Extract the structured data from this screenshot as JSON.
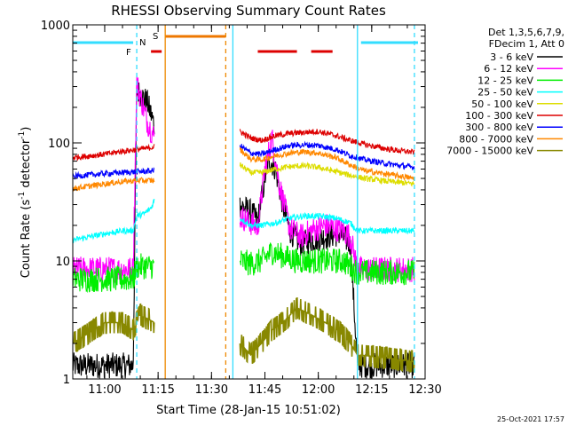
{
  "chart_data": {
    "type": "line",
    "title": "RHESSI Observing Summary Count Rates",
    "xlabel": "Start Time (28-Jan-15 10:51:02)",
    "ylabel": "Count Rate (s⁻¹ detector⁻¹)",
    "ylabel_parts": [
      "Count Rate (s",
      "-1",
      " detector",
      "-1",
      ")"
    ],
    "y_scale": "log",
    "ylim": [
      1,
      1000
    ],
    "xlim": [
      "10:51:02",
      "12:30:00"
    ],
    "x_ticks": [
      "11:00",
      "11:15",
      "11:30",
      "11:45",
      "12:00",
      "12:15",
      "12:30"
    ],
    "y_ticks": [
      "1",
      "10",
      "100",
      "1000"
    ],
    "legend_header": [
      "Det 1,3,5,6,7,9,",
      "FDecim 1, Att 0"
    ],
    "legend_position": "right",
    "footer": "25-Oct-2021 17:57",
    "flags": [
      {
        "label": "F",
        "color": "#dd0000",
        "segments": [
          [
            "11:13",
            "11:16"
          ]
        ]
      },
      {
        "label": "N",
        "color": "#22aaff",
        "segments": []
      },
      {
        "label": "S",
        "color": "#ee7700",
        "segments": [
          [
            "11:17",
            "11:34"
          ]
        ]
      },
      {
        "label": "",
        "color": "#dd0000",
        "segments": [
          [
            "11:43",
            "11:54"
          ],
          [
            "11:58",
            "12:04"
          ]
        ]
      },
      {
        "label": "",
        "color": "#33ddff",
        "segments": [
          [
            "10:51",
            "11:08"
          ],
          [
            "12:12",
            "12:28"
          ]
        ]
      }
    ],
    "vlines": [
      {
        "time": "11:09",
        "color": "#33ddff",
        "style": "dashed"
      },
      {
        "time": "11:17",
        "color": "#ee8800",
        "style": "solid"
      },
      {
        "time": "11:34",
        "color": "#ee8800",
        "style": "dashed"
      },
      {
        "time": "11:36",
        "color": "#33ddff",
        "style": "solid"
      },
      {
        "time": "12:11",
        "color": "#33ddff",
        "style": "solid"
      },
      {
        "time": "12:27",
        "color": "#33ddff",
        "style": "dashed"
      }
    ],
    "series": [
      {
        "name": "3 - 6 keV",
        "color": "#000000",
        "band": "noisy",
        "segments": [
          [
            [
              "10:51",
              1.3
            ],
            [
              "11:00",
              1.3
            ],
            [
              "11:05",
              1.3
            ],
            [
              "11:08",
              1.3
            ],
            [
              "11:09",
              280
            ],
            [
              "11:12",
              220
            ],
            [
              "11:14",
              140
            ]
          ],
          [
            [
              "11:38",
              30
            ],
            [
              "11:41",
              26
            ],
            [
              "11:43",
              22
            ],
            [
              "11:45",
              50
            ],
            [
              "11:46",
              75
            ],
            [
              "11:48",
              60
            ],
            [
              "11:50",
              30
            ],
            [
              "11:52",
              18
            ],
            [
              "11:55",
              14
            ],
            [
              "11:58",
              15
            ],
            [
              "12:02",
              16
            ],
            [
              "12:06",
              17
            ],
            [
              "12:09",
              14
            ],
            [
              "12:11",
              1.3
            ],
            [
              "12:20",
              1.3
            ],
            [
              "12:27",
              1.3
            ]
          ]
        ]
      },
      {
        "name": "6 - 12 keV",
        "color": "#ff00ff",
        "band": "noisy",
        "segments": [
          [
            [
              "10:51",
              8.5
            ],
            [
              "11:00",
              8.5
            ],
            [
              "11:08",
              8.5
            ],
            [
              "11:09",
              320
            ],
            [
              "11:12",
              150
            ],
            [
              "11:14",
              110
            ]
          ],
          [
            [
              "11:38",
              24
            ],
            [
              "11:41",
              21
            ],
            [
              "11:43",
              19
            ],
            [
              "11:45",
              60
            ],
            [
              "11:47",
              110
            ],
            [
              "11:49",
              45
            ],
            [
              "11:52",
              19
            ],
            [
              "11:55",
              16
            ],
            [
              "11:58",
              18
            ],
            [
              "12:02",
              20
            ],
            [
              "12:07",
              18
            ],
            [
              "12:09",
              16
            ],
            [
              "12:11",
              8.5
            ],
            [
              "12:20",
              8.5
            ],
            [
              "12:27",
              8.5
            ]
          ]
        ]
      },
      {
        "name": "12 - 25 keV",
        "color": "#00ee00",
        "band": "noisy",
        "segments": [
          [
            [
              "10:51",
              7
            ],
            [
              "11:00",
              7
            ],
            [
              "11:08",
              7
            ],
            [
              "11:09",
              9
            ],
            [
              "11:14",
              9
            ]
          ],
          [
            [
              "11:38",
              10
            ],
            [
              "11:41",
              9.5
            ],
            [
              "11:44",
              10
            ],
            [
              "11:47",
              12
            ],
            [
              "11:50",
              11
            ],
            [
              "11:54",
              10
            ],
            [
              "11:58",
              10
            ],
            [
              "12:02",
              10
            ],
            [
              "12:07",
              10
            ],
            [
              "12:11",
              8
            ],
            [
              "12:20",
              8
            ],
            [
              "12:27",
              8
            ]
          ]
        ]
      },
      {
        "name": "25 - 50 keV",
        "color": "#00ffff",
        "band": "smooth",
        "segments": [
          [
            [
              "10:51",
              15
            ],
            [
              "11:00",
              17
            ],
            [
              "11:05",
              18
            ],
            [
              "11:08",
              18
            ],
            [
              "11:09",
              24
            ],
            [
              "11:11",
              25
            ],
            [
              "11:13",
              28
            ],
            [
              "11:14",
              33
            ]
          ],
          [
            [
              "11:38",
              23
            ],
            [
              "11:41",
              20
            ],
            [
              "11:44",
              20
            ],
            [
              "11:48",
              21
            ],
            [
              "11:52",
              23
            ],
            [
              "11:56",
              24
            ],
            [
              "12:00",
              24
            ],
            [
              "12:05",
              23
            ],
            [
              "12:09",
              21
            ],
            [
              "12:11",
              18
            ],
            [
              "12:20",
              18
            ],
            [
              "12:27",
              18
            ]
          ]
        ]
      },
      {
        "name": "50 - 100 keV",
        "color": "#dddd00",
        "band": "smooth",
        "segments": [
          [],
          [
            [
              "11:38",
              65
            ],
            [
              "11:41",
              56
            ],
            [
              "11:44",
              56
            ],
            [
              "11:48",
              60
            ],
            [
              "11:52",
              63
            ],
            [
              "11:56",
              64
            ],
            [
              "12:00",
              62
            ],
            [
              "12:05",
              57
            ],
            [
              "12:09",
              53
            ],
            [
              "12:13",
              50
            ],
            [
              "12:20",
              47
            ],
            [
              "12:27",
              45
            ]
          ]
        ]
      },
      {
        "name": "100 - 300 keV",
        "color": "#dd0000",
        "band": "smooth",
        "segments": [
          [
            [
              "10:51",
              75
            ],
            [
              "11:00",
              80
            ],
            [
              "11:05",
              85
            ],
            [
              "11:08",
              87
            ],
            [
              "11:09",
              88
            ],
            [
              "11:12",
              90
            ],
            [
              "11:14",
              93
            ]
          ],
          [
            [
              "11:38",
              125
            ],
            [
              "11:41",
              110
            ],
            [
              "11:44",
              105
            ],
            [
              "11:48",
              115
            ],
            [
              "11:52",
              120
            ],
            [
              "11:56",
              123
            ],
            [
              "12:00",
              125
            ],
            [
              "12:05",
              115
            ],
            [
              "12:09",
              105
            ],
            [
              "12:13",
              97
            ],
            [
              "12:20",
              88
            ],
            [
              "12:27",
              83
            ]
          ]
        ]
      },
      {
        "name": "300 - 800 keV",
        "color": "#0000ff",
        "band": "smooth",
        "segments": [
          [
            [
              "10:51",
              52
            ],
            [
              "11:00",
              55
            ],
            [
              "11:05",
              56
            ],
            [
              "11:09",
              57
            ],
            [
              "11:14",
              58
            ]
          ],
          [
            [
              "11:38",
              95
            ],
            [
              "11:41",
              82
            ],
            [
              "11:44",
              80
            ],
            [
              "11:48",
              88
            ],
            [
              "11:52",
              95
            ],
            [
              "11:56",
              96
            ],
            [
              "12:00",
              95
            ],
            [
              "12:05",
              88
            ],
            [
              "12:09",
              78
            ],
            [
              "12:13",
              72
            ],
            [
              "12:20",
              66
            ],
            [
              "12:27",
              62
            ]
          ]
        ]
      },
      {
        "name": "800 - 7000 keV",
        "color": "#ff8800",
        "band": "smooth",
        "segments": [
          [
            [
              "10:51",
              41
            ],
            [
              "11:00",
              45
            ],
            [
              "11:05",
              47
            ],
            [
              "11:09",
              48
            ],
            [
              "11:14",
              48
            ]
          ],
          [
            [
              "11:38",
              88
            ],
            [
              "11:41",
              73
            ],
            [
              "11:44",
              72
            ],
            [
              "11:48",
              78
            ],
            [
              "11:52",
              82
            ],
            [
              "11:56",
              84
            ],
            [
              "12:00",
              82
            ],
            [
              "12:05",
              75
            ],
            [
              "12:09",
              65
            ],
            [
              "12:13",
              58
            ],
            [
              "12:20",
              54
            ],
            [
              "12:27",
              50
            ]
          ]
        ]
      },
      {
        "name": "7000 - 15000 keV",
        "color": "#888800",
        "band": "steps",
        "segments": [
          [
            [
              "10:51",
              2
            ],
            [
              "11:00",
              3
            ],
            [
              "11:05",
              3
            ],
            [
              "11:08",
              2.6
            ],
            [
              "11:10",
              3.5
            ],
            [
              "11:14",
              3
            ]
          ],
          [
            [
              "11:38",
              2
            ],
            [
              "11:41",
              1.6
            ],
            [
              "11:44",
              2
            ],
            [
              "11:47",
              2.6
            ],
            [
              "11:50",
              3
            ],
            [
              "11:54",
              4
            ],
            [
              "11:58",
              3.5
            ],
            [
              "12:02",
              3
            ],
            [
              "12:06",
              2.5
            ],
            [
              "12:09",
              2
            ],
            [
              "12:11",
              1.6
            ],
            [
              "12:20",
              1.5
            ],
            [
              "12:27",
              1.4
            ]
          ]
        ]
      }
    ]
  }
}
